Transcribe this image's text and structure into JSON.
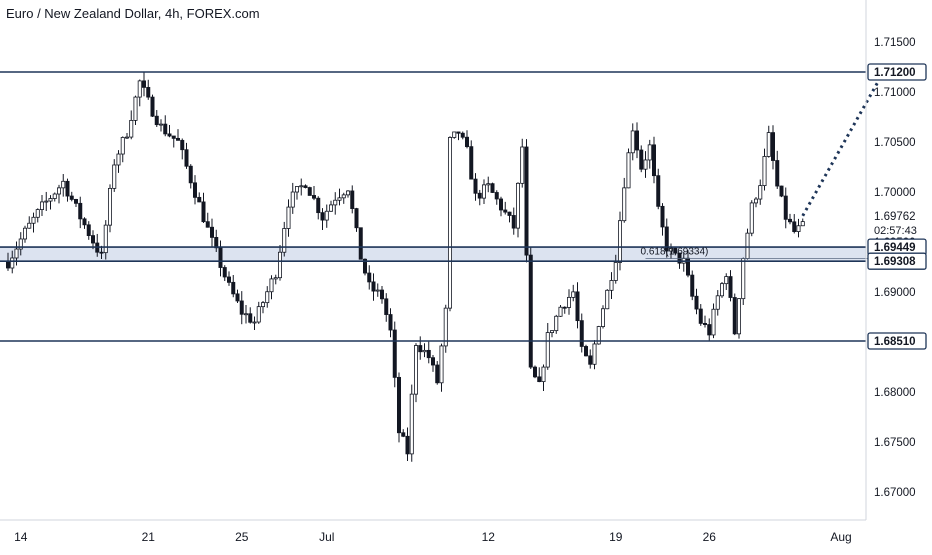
{
  "chart_data": {
    "type": "candlestick",
    "title": "Euro / New Zealand Dollar, 4h, FOREX.com",
    "ylim": [
      1.667,
      1.717
    ],
    "y_ticks": [
      "1.71500",
      "1.71000",
      "1.70500",
      "1.70000",
      "1.69500",
      "1.69000",
      "1.68500",
      "1.68000",
      "1.67500",
      "1.67000"
    ],
    "x_ticks": [
      {
        "label": "14",
        "bar": 3
      },
      {
        "label": "21",
        "bar": 33
      },
      {
        "label": "25",
        "bar": 55
      },
      {
        "label": "Jul",
        "bar": 75
      },
      {
        "label": "12",
        "bar": 113
      },
      {
        "label": "19",
        "bar": 143
      },
      {
        "label": "26",
        "bar": 165
      },
      {
        "label": "Aug",
        "bar": 196
      }
    ],
    "bar_count": 212,
    "price_anchors": [
      [
        0,
        1.693
      ],
      [
        4,
        1.696
      ],
      [
        8,
        1.6985
      ],
      [
        13,
        1.701
      ],
      [
        17,
        1.6975
      ],
      [
        22,
        1.6935
      ],
      [
        25,
        1.703
      ],
      [
        28,
        1.706
      ],
      [
        31,
        1.711
      ],
      [
        33,
        1.709
      ],
      [
        36,
        1.7065
      ],
      [
        40,
        1.705
      ],
      [
        44,
        1.7
      ],
      [
        48,
        1.695
      ],
      [
        52,
        1.6905
      ],
      [
        55,
        1.688
      ],
      [
        58,
        1.687
      ],
      [
        60,
        1.689
      ],
      [
        63,
        1.692
      ],
      [
        66,
        1.699
      ],
      [
        70,
        1.701
      ],
      [
        74,
        1.6975
      ],
      [
        77,
        1.6995
      ],
      [
        80,
        1.7005
      ],
      [
        83,
        1.6935
      ],
      [
        85,
        1.6905
      ],
      [
        88,
        1.6895
      ],
      [
        90,
        1.686
      ],
      [
        92,
        1.676
      ],
      [
        94,
        1.674
      ],
      [
        96,
        1.685
      ],
      [
        99,
        1.6835
      ],
      [
        101,
        1.681
      ],
      [
        103,
        1.688
      ],
      [
        104,
        1.705
      ],
      [
        106,
        1.706
      ],
      [
        108,
        1.704
      ],
      [
        110,
        1.6995
      ],
      [
        113,
        1.7005
      ],
      [
        116,
        1.6985
      ],
      [
        119,
        1.6965
      ],
      [
        121,
        1.7045
      ],
      [
        123,
        1.682
      ],
      [
        125,
        1.6805
      ],
      [
        127,
        1.6855
      ],
      [
        130,
        1.6885
      ],
      [
        133,
        1.69
      ],
      [
        135,
        1.684
      ],
      [
        137,
        1.6825
      ],
      [
        139,
        1.687
      ],
      [
        141,
        1.69
      ],
      [
        143,
        1.6935
      ],
      [
        145,
        1.701
      ],
      [
        147,
        1.7065
      ],
      [
        149,
        1.7025
      ],
      [
        151,
        1.7045
      ],
      [
        153,
        1.698
      ],
      [
        155,
        1.6945
      ],
      [
        157,
        1.6935
      ],
      [
        159,
        1.693
      ],
      [
        161,
        1.6895
      ],
      [
        163,
        1.687
      ],
      [
        165,
        1.686
      ],
      [
        167,
        1.6895
      ],
      [
        169,
        1.692
      ],
      [
        171,
        1.686
      ],
      [
        173,
        1.6935
      ],
      [
        175,
        1.6985
      ],
      [
        177,
        1.701
      ],
      [
        179,
        1.7055
      ],
      [
        181,
        1.7005
      ],
      [
        183,
        1.6975
      ],
      [
        185,
        1.696
      ],
      [
        187,
        1.6965
      ]
    ],
    "levels": [
      {
        "price": 1.712,
        "label": "1.71200"
      },
      {
        "price": 1.69449,
        "label": "1.69449"
      },
      {
        "price": 1.69308,
        "label": "1.69308"
      },
      {
        "price": 1.6851,
        "label": "1.68510"
      }
    ],
    "zone": {
      "top": 1.69449,
      "bottom": 1.69308,
      "color": "#dce3f0"
    },
    "fib": {
      "label": "0.618(1.69334)",
      "price": 1.69334,
      "from_bar": 150,
      "to_bar": 210
    },
    "last_price": {
      "value": "1.69762",
      "price": 1.69762,
      "countdown": "02:57:43"
    },
    "projection": {
      "from": [
        187,
        1.69762
      ],
      "to": [
        206,
        1.712
      ],
      "style": "dotted"
    },
    "colors": {
      "line": "#1e3558",
      "candle": "#131722",
      "zone": "#dce3f0",
      "grid": "#ffffff",
      "axis_text": "#131722"
    }
  }
}
